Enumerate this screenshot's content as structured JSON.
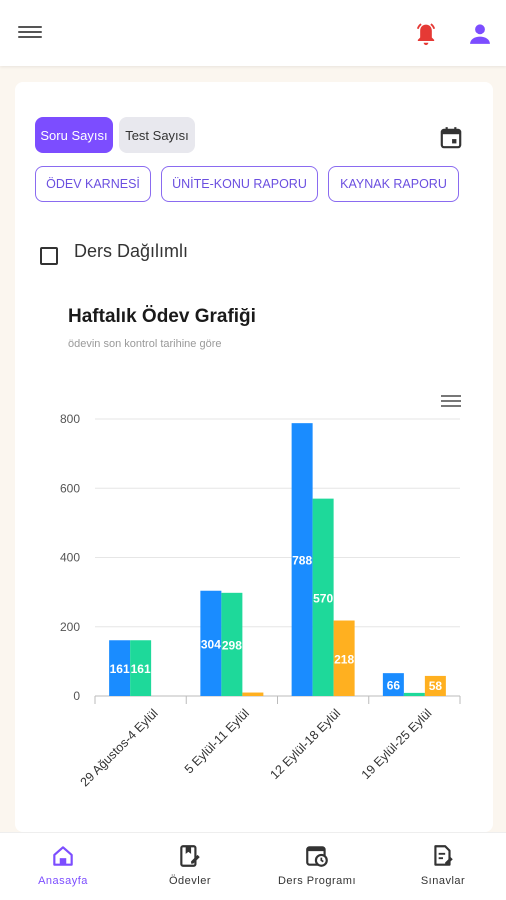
{
  "header": {
    "menu_icon": "hamburger-menu-icon",
    "notification_icon": "alarm-bell-icon",
    "profile_icon": "person-icon",
    "notification_color": "#e53935",
    "accent_color": "#7c4dff"
  },
  "toggles": {
    "soru_label": "Soru Sayısı",
    "test_label": "Test Sayısı"
  },
  "calendar_icon": "calendar-icon",
  "report_buttons": {
    "odev_karnesi": "ÖDEV KARNESİ",
    "unite_konu": "ÜNİTE-KONU RAPORU",
    "kaynak": "KAYNAK RAPORU"
  },
  "checkbox": {
    "label": "Ders Dağılımlı",
    "checked": false
  },
  "chart_data": {
    "type": "bar",
    "title": "Haftalık Ödev Grafiği",
    "subtitle": "ödevin son kontrol tarihine göre",
    "categories": [
      "29 Ağustos-4 Eylül",
      "5 Eylül-11 Eylül",
      "12 Eylül-18 Eylül",
      "19 Eylül-25 Eylül"
    ],
    "series": [
      {
        "color": "#1a8cff",
        "values": [
          161,
          304,
          788,
          66
        ]
      },
      {
        "color": "#1ed99a",
        "values": [
          161,
          298,
          570,
          9
        ]
      },
      {
        "color": "#ffb020",
        "values": [
          0,
          10,
          218,
          58
        ]
      }
    ],
    "data_labels": [
      [
        "161",
        "304",
        "788",
        "66"
      ],
      [
        "161",
        "298",
        "570",
        ""
      ],
      [
        "",
        "",
        "218",
        "58"
      ]
    ],
    "yticks": [
      "0",
      "200",
      "400",
      "600",
      "800"
    ],
    "ylim": [
      0,
      800
    ],
    "grid": true,
    "legend": "none"
  },
  "bottom_nav": [
    {
      "label": "Anasayfa",
      "icon": "home-icon",
      "active": true
    },
    {
      "label": "Ödevler",
      "icon": "homework-edit-icon",
      "active": false
    },
    {
      "label": "Ders Programı",
      "icon": "schedule-calendar-icon",
      "active": false
    },
    {
      "label": "Sınavlar",
      "icon": "exam-document-icon",
      "active": false
    }
  ]
}
